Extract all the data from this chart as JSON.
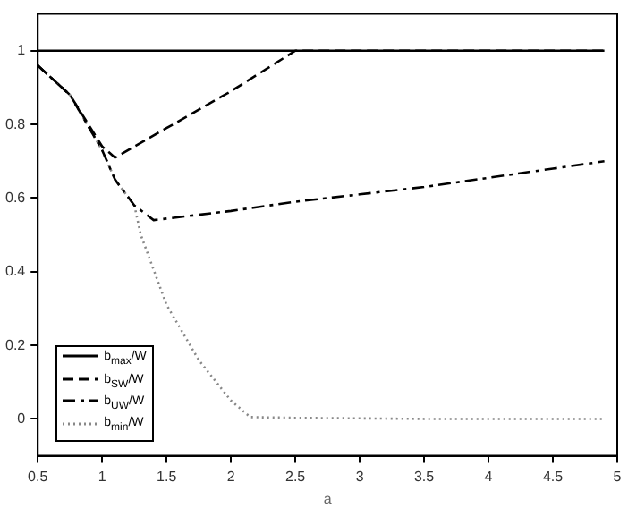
{
  "chart_data": {
    "type": "line",
    "xlabel": "a",
    "xlim": [
      0.5,
      5
    ],
    "xticks": [
      0.5,
      1,
      1.5,
      2,
      2.5,
      3,
      3.5,
      4,
      4.5,
      5
    ],
    "ylim": [
      -0.1,
      1.1
    ],
    "yticks": [
      0,
      0.2,
      0.4,
      0.6,
      0.8,
      1
    ],
    "grid": false,
    "legend": "bottom left",
    "marker": "none",
    "series": [
      {
        "name": "b$_{max}$/W",
        "color": "#000000",
        "line_style": "solid",
        "x": [
          0.5,
          4.9
        ],
        "values": [
          1,
          1
        ]
      },
      {
        "name": "b$_{SW}$/W",
        "color": "#000000",
        "line_style": "dashed",
        "x": [
          0.5,
          0.75,
          1.0,
          1.1,
          1.5,
          2.0,
          2.5,
          4.9
        ],
        "values": [
          0.96,
          0.88,
          0.74,
          0.71,
          0.79,
          0.89,
          1.0,
          1.0
        ]
      },
      {
        "name": "b$_{UW}$/W",
        "color": "#000000",
        "line_style": "dashdot",
        "x": [
          0.5,
          0.75,
          1.0,
          1.1,
          1.25,
          1.4,
          2.0,
          2.5,
          3.0,
          3.5,
          4.0,
          4.5,
          4.9
        ],
        "values": [
          0.96,
          0.88,
          0.73,
          0.65,
          0.58,
          0.54,
          0.565,
          0.59,
          0.61,
          0.63,
          0.655,
          0.68,
          0.7
        ]
      },
      {
        "name": "b$_{min}$/W",
        "color": "#888888",
        "line_style": "dotted",
        "x": [
          0.5,
          0.75,
          1.0,
          1.1,
          1.25,
          1.3,
          1.5,
          1.75,
          2.0,
          2.15,
          2.5,
          3.5,
          4.9
        ],
        "values": [
          0.96,
          0.88,
          0.73,
          0.65,
          0.58,
          0.5,
          0.31,
          0.16,
          0.05,
          0.005,
          0.003,
          0.0,
          0.0
        ]
      }
    ]
  }
}
